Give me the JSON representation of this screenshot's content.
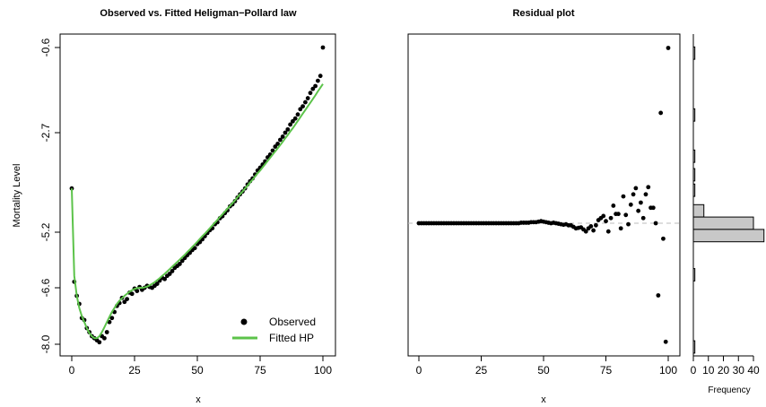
{
  "chart_data": [
    {
      "type": "scatter",
      "title": "Observed vs. Fitted Heligman−Pollard law",
      "xlabel": "x",
      "ylabel": "Mortality Level",
      "xlim": [
        0,
        100
      ],
      "ylim": [
        -8.0,
        -0.6
      ],
      "xticks": [
        "0",
        "25",
        "50",
        "75",
        "100"
      ],
      "yticks": [
        "-8.0",
        "-6.6",
        "-5.2",
        "-2.7",
        "-0.6"
      ],
      "legend": {
        "position": "bottom-right",
        "entries": [
          "Observed",
          "Fitted HP"
        ]
      },
      "colors": {
        "observed": "#000000",
        "fitted": "#5cc34a"
      },
      "series": [
        {
          "name": "Observed",
          "x": [
            0,
            1,
            2,
            3,
            4,
            5,
            6,
            7,
            8,
            9,
            10,
            11,
            12,
            13,
            14,
            15,
            16,
            17,
            18,
            19,
            20,
            21,
            22,
            23,
            24,
            25,
            26,
            27,
            28,
            29,
            30,
            31,
            32,
            33,
            34,
            35,
            36,
            37,
            38,
            39,
            40,
            41,
            42,
            43,
            44,
            45,
            46,
            47,
            48,
            49,
            50,
            51,
            52,
            53,
            54,
            55,
            56,
            57,
            58,
            59,
            60,
            61,
            62,
            63,
            64,
            65,
            66,
            67,
            68,
            69,
            70,
            71,
            72,
            73,
            74,
            75,
            76,
            77,
            78,
            79,
            80,
            81,
            82,
            83,
            84,
            85,
            86,
            87,
            88,
            89,
            90,
            91,
            92,
            93,
            94,
            95,
            96,
            97,
            98,
            99,
            100
          ],
          "y": [
            -4.1,
            -6.45,
            -6.8,
            -7.0,
            -7.35,
            -7.4,
            -7.6,
            -7.7,
            -7.8,
            -7.85,
            -7.9,
            -7.95,
            -7.8,
            -7.85,
            -7.7,
            -7.45,
            -7.35,
            -7.2,
            -7.05,
            -6.98,
            -6.85,
            -6.95,
            -6.88,
            -6.72,
            -6.75,
            -6.62,
            -6.68,
            -6.58,
            -6.65,
            -6.6,
            -6.55,
            -6.58,
            -6.6,
            -6.55,
            -6.5,
            -6.42,
            -6.35,
            -6.38,
            -6.3,
            -6.25,
            -6.18,
            -6.1,
            -6.05,
            -6.0,
            -5.92,
            -5.85,
            -5.78,
            -5.72,
            -5.65,
            -5.6,
            -5.5,
            -5.45,
            -5.38,
            -5.3,
            -5.22,
            -5.15,
            -5.1,
            -5.0,
            -4.95,
            -4.85,
            -4.8,
            -4.72,
            -4.65,
            -4.55,
            -4.5,
            -4.42,
            -4.33,
            -4.25,
            -4.18,
            -4.1,
            -4.0,
            -3.92,
            -3.85,
            -3.75,
            -3.65,
            -3.58,
            -3.5,
            -3.42,
            -3.32,
            -3.25,
            -3.15,
            -3.05,
            -2.98,
            -2.88,
            -2.8,
            -2.7,
            -2.62,
            -2.5,
            -2.42,
            -2.35,
            -2.25,
            -2.12,
            -2.05,
            -1.95,
            -1.85,
            -1.72,
            -1.62,
            -1.55,
            -1.42,
            -1.3,
            -0.6
          ]
        },
        {
          "name": "Fitted HP",
          "x": [
            0,
            1,
            2,
            3,
            4,
            5,
            6,
            7,
            8,
            9,
            10,
            11,
            12,
            13,
            14,
            15,
            16,
            17,
            18,
            19,
            20,
            21,
            22,
            23,
            24,
            25,
            26,
            27,
            28,
            29,
            30,
            31,
            32,
            33,
            34,
            35,
            36,
            37,
            38,
            39,
            40,
            41,
            42,
            43,
            44,
            45,
            46,
            47,
            48,
            49,
            50,
            51,
            52,
            53,
            54,
            55,
            56,
            57,
            58,
            59,
            60,
            61,
            62,
            63,
            64,
            65,
            66,
            67,
            68,
            69,
            70,
            71,
            72,
            73,
            74,
            75,
            76,
            77,
            78,
            79,
            80,
            81,
            82,
            83,
            84,
            85,
            86,
            87,
            88,
            89,
            90,
            91,
            92,
            93,
            94,
            95,
            96,
            97,
            98,
            99,
            100
          ],
          "y": [
            -4.1,
            -6.3,
            -6.8,
            -7.1,
            -7.3,
            -7.45,
            -7.6,
            -7.72,
            -7.8,
            -7.85,
            -7.85,
            -7.8,
            -7.7,
            -7.58,
            -7.45,
            -7.32,
            -7.2,
            -7.1,
            -7.0,
            -6.92,
            -6.86,
            -6.8,
            -6.75,
            -6.7,
            -6.66,
            -6.63,
            -6.61,
            -6.6,
            -6.6,
            -6.59,
            -6.57,
            -6.54,
            -6.5,
            -6.46,
            -6.41,
            -6.36,
            -6.3,
            -6.25,
            -6.19,
            -6.13,
            -6.07,
            -6.01,
            -5.95,
            -5.89,
            -5.83,
            -5.77,
            -5.7,
            -5.64,
            -5.57,
            -5.51,
            -5.44,
            -5.37,
            -5.3,
            -5.24,
            -5.17,
            -5.1,
            -5.03,
            -4.96,
            -4.89,
            -4.82,
            -4.75,
            -4.68,
            -4.61,
            -4.54,
            -4.47,
            -4.4,
            -4.32,
            -4.25,
            -4.18,
            -4.1,
            -4.03,
            -3.95,
            -3.88,
            -3.8,
            -3.72,
            -3.65,
            -3.57,
            -3.49,
            -3.41,
            -3.33,
            -3.25,
            -3.17,
            -3.09,
            -3.01,
            -2.93,
            -2.84,
            -2.76,
            -2.67,
            -2.59,
            -2.5,
            -2.41,
            -2.32,
            -2.23,
            -2.14,
            -2.05,
            -1.96,
            -1.87,
            -1.78,
            -1.68,
            -1.59,
            -1.5
          ]
        }
      ]
    },
    {
      "type": "scatter",
      "title": "Residual plot",
      "xlabel": "x",
      "xlim": [
        0,
        100
      ],
      "xticks": [
        "0",
        "25",
        "50",
        "75",
        "100"
      ],
      "reference_line": 0,
      "series": [
        {
          "x": [
            0,
            1,
            2,
            3,
            4,
            5,
            6,
            7,
            8,
            9,
            10,
            11,
            12,
            13,
            14,
            15,
            16,
            17,
            18,
            19,
            20,
            21,
            22,
            23,
            24,
            25,
            26,
            27,
            28,
            29,
            30,
            31,
            32,
            33,
            34,
            35,
            36,
            37,
            38,
            39,
            40,
            41,
            42,
            43,
            44,
            45,
            46,
            47,
            48,
            49,
            50,
            51,
            52,
            53,
            54,
            55,
            56,
            57,
            58,
            59,
            60,
            61,
            62,
            63,
            64,
            65,
            66,
            67,
            68,
            69,
            70,
            71,
            72,
            73,
            74,
            75,
            76,
            77,
            78,
            79,
            80,
            81,
            82,
            83,
            84,
            85,
            86,
            87,
            88,
            89,
            90,
            91,
            92,
            93,
            94,
            95,
            96,
            97,
            98,
            99,
            100
          ],
          "y": [
            0.0,
            0.0,
            0.0,
            0.0,
            0.0,
            0.0,
            0.0,
            0.0,
            0.0,
            0.0,
            0.0,
            0.0,
            0.0,
            0.0,
            0.0,
            0.0,
            0.0,
            0.0,
            0.0,
            0.0,
            0.0,
            0.0,
            0.0,
            0.0,
            0.0,
            0.0,
            0.0,
            0.0,
            0.0,
            0.0,
            0.0,
            0.0,
            0.0,
            0.0,
            0.0,
            0.0,
            0.0,
            0.0,
            0.0,
            0.0,
            0.0,
            0.005,
            0.005,
            0.005,
            0.005,
            0.01,
            0.01,
            0.01,
            0.015,
            0.02,
            0.015,
            0.01,
            0.005,
            0.0,
            0.005,
            0.0,
            -0.005,
            -0.01,
            -0.015,
            -0.01,
            -0.02,
            -0.02,
            -0.035,
            -0.05,
            -0.045,
            -0.04,
            -0.06,
            -0.08,
            -0.05,
            -0.03,
            -0.07,
            -0.02,
            0.03,
            0.05,
            0.07,
            0.02,
            -0.08,
            0.05,
            0.17,
            0.09,
            0.09,
            -0.05,
            0.26,
            0.08,
            -0.01,
            0.18,
            0.28,
            0.34,
            0.12,
            0.2,
            0.05,
            0.28,
            0.35,
            0.15,
            0.15,
            0.0,
            -0.7,
            1.07,
            -0.15,
            -1.15,
            1.7
          ]
        }
      ],
      "histogram": {
        "xlabel": "Frequency",
        "xticks": [
          "0",
          "10",
          "20",
          "30",
          "40"
        ],
        "xlim": [
          0,
          48
        ],
        "bins": [
          {
            "center": 1.65,
            "count": 1
          },
          {
            "center": 1.05,
            "count": 1
          },
          {
            "center": 0.65,
            "count": 1
          },
          {
            "center": 0.47,
            "count": 1
          },
          {
            "center": 0.32,
            "count": 1
          },
          {
            "center": 0.12,
            "count": 7
          },
          {
            "center": 0.0,
            "count": 40
          },
          {
            "center": -0.12,
            "count": 47
          },
          {
            "center": -0.5,
            "count": 1
          },
          {
            "center": -1.2,
            "count": 1
          }
        ]
      }
    }
  ]
}
